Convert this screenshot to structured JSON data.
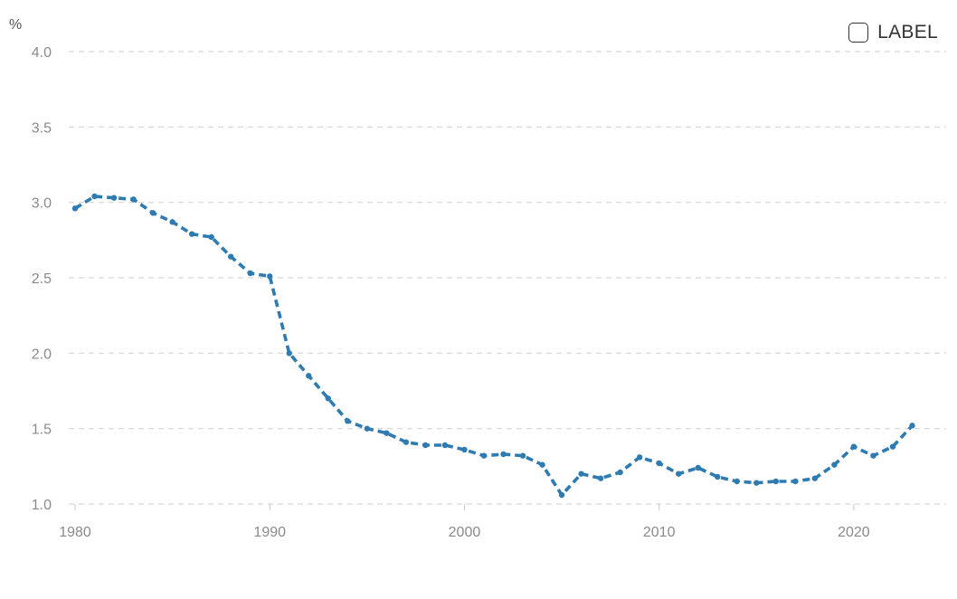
{
  "chart_data": {
    "type": "line",
    "ylabel": "%",
    "ylim": [
      1.0,
      4.0
    ],
    "yticks": [
      "1.0",
      "1.5",
      "2.0",
      "2.5",
      "3.0",
      "3.5",
      "4.0"
    ],
    "xlim": [
      1980,
      2024
    ],
    "xticks": [
      "1980",
      "1990",
      "2000",
      "2010",
      "2020"
    ],
    "grid": true,
    "legend_position": "top-right",
    "series": [
      {
        "name": "LABEL",
        "color": "#2e7bb1",
        "x": [
          1980,
          1981,
          1982,
          1983,
          1984,
          1985,
          1986,
          1987,
          1988,
          1989,
          1990,
          1991,
          1992,
          1993,
          1994,
          1995,
          1996,
          1997,
          1998,
          1999,
          2000,
          2001,
          2002,
          2003,
          2004,
          2005,
          2006,
          2007,
          2008,
          2009,
          2010,
          2011,
          2012,
          2013,
          2014,
          2015,
          2016,
          2017,
          2018,
          2019,
          2020,
          2021,
          2022,
          2023
        ],
        "values": [
          2.96,
          3.04,
          3.03,
          3.02,
          2.93,
          2.87,
          2.79,
          2.77,
          2.64,
          2.53,
          2.51,
          2.0,
          1.85,
          1.7,
          1.55,
          1.5,
          1.47,
          1.41,
          1.39,
          1.39,
          1.36,
          1.32,
          1.33,
          1.32,
          1.26,
          1.06,
          1.2,
          1.17,
          1.21,
          1.31,
          1.27,
          1.2,
          1.24,
          1.18,
          1.15,
          1.14,
          1.15,
          1.15,
          1.17,
          1.26,
          1.38,
          1.32,
          1.38,
          1.52
        ]
      }
    ]
  },
  "legend": {
    "label": "LABEL",
    "checked": false
  }
}
